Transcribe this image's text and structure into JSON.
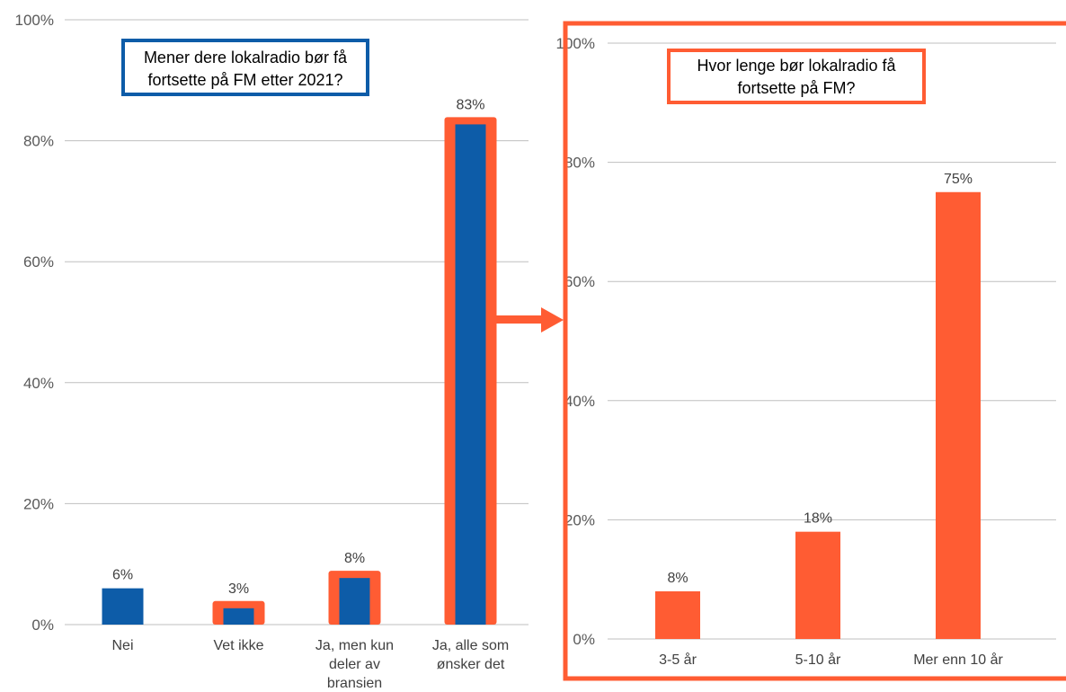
{
  "colors": {
    "blue": "#0d5ca8",
    "orange": "#ff5c33",
    "grid": "#bfbfbf",
    "title_box_left": "#0d5ca8",
    "title_box_right": "#ff5c33"
  },
  "chart_data": [
    {
      "type": "bar",
      "title": "Mener dere lokalradio bør få fortsette på FM etter 2021?",
      "title_lines": [
        "Mener dere lokalradio bør få",
        "fortsette på FM etter 2021?"
      ],
      "categories": [
        "Nei",
        "Vet ikke",
        "Ja, men kun deler av bransjen",
        "Ja, alle som ønsker det"
      ],
      "category_lines": [
        [
          "Nei"
        ],
        [
          "Vet ikke"
        ],
        [
          "Ja, men kun",
          "deler av",
          "bransjen"
        ],
        [
          "Ja, alle som",
          "ønsker det"
        ]
      ],
      "values": [
        6,
        3,
        8,
        83
      ],
      "value_labels": [
        "6%",
        "3%",
        "8%",
        "83%"
      ],
      "highlighted": [
        false,
        true,
        true,
        true
      ],
      "ylim": [
        0,
        100
      ],
      "yticks": [
        "0%",
        "20%",
        "40%",
        "60%",
        "80%",
        "100%"
      ],
      "bar_color": "#0d5ca8",
      "highlight_color": "#ff5c33",
      "grid": true,
      "legend": "none"
    },
    {
      "type": "bar",
      "title": "Hvor lenge bør lokalradio få fortsette på FM?",
      "title_lines": [
        "Hvor lenge bør lokalradio få",
        "fortsette på FM?"
      ],
      "categories": [
        "3-5 år",
        "5-10 år",
        "Mer enn 10 år"
      ],
      "category_lines": [
        [
          "3-5 år"
        ],
        [
          "5-10 år"
        ],
        [
          "Mer enn 10 år"
        ]
      ],
      "values": [
        8,
        18,
        75
      ],
      "value_labels": [
        "8%",
        "18%",
        "75%"
      ],
      "ylim": [
        0,
        100
      ],
      "yticks": [
        "0%",
        "20%",
        "40%",
        "60%",
        "80%",
        "100%"
      ],
      "bar_color": "#ff5c33",
      "grid": true,
      "legend": "none"
    }
  ]
}
